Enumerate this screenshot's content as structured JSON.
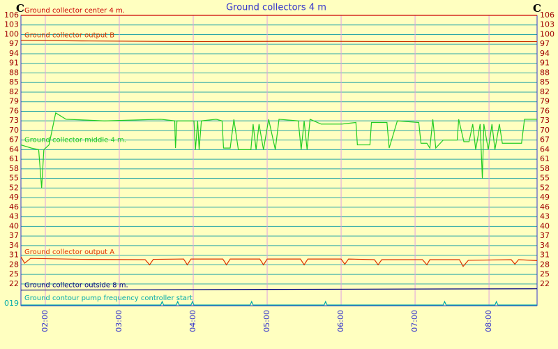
{
  "chart_data": [
    {
      "type": "line",
      "title": "Ground collectors 4 m",
      "ylabel": "C",
      "y2label": "C",
      "ylim": [
        20,
        106
      ],
      "yticks": [
        106,
        103,
        100,
        97,
        94,
        91,
        88,
        85,
        82,
        79,
        76,
        73,
        70,
        67,
        64,
        61,
        58,
        55,
        52,
        49,
        46,
        43,
        40,
        37,
        34,
        31,
        28,
        25,
        22
      ],
      "xlim": [
        1.67,
        8.65
      ],
      "xticks": [
        {
          "value": 2,
          "label": "02:00"
        },
        {
          "value": 3,
          "label": "03:00"
        },
        {
          "value": 4,
          "label": "04:00"
        },
        {
          "value": 5,
          "label": "05:00"
        },
        {
          "value": 6,
          "label": "06:00"
        },
        {
          "value": 7,
          "label": "07:00"
        },
        {
          "value": 8,
          "label": "08:00"
        }
      ],
      "grid": true,
      "series": [
        {
          "name": "Ground collector center 4 m.",
          "color": "#cc0000",
          "x": [
            1.67,
            8.65
          ],
          "values": [
            106,
            106
          ]
        },
        {
          "name": "Ground collector output B",
          "color": "#cc3300",
          "x": [
            1.67,
            2.5,
            4,
            5.5,
            7,
            8.65
          ],
          "values": [
            98.2,
            98,
            97.8,
            97.9,
            97.8,
            97.8
          ]
        },
        {
          "name": "Ground collector middle 4 m.",
          "color": "#22cc22",
          "x": [
            1.67,
            1.81,
            1.91,
            1.95,
            1.98,
            2.05,
            2.14,
            2.28,
            2.8,
            3.56,
            3.75,
            3.76,
            3.78,
            4.01,
            4.03,
            4.06,
            4.08,
            4.11,
            4.31,
            4.39,
            4.41,
            4.5,
            4.55,
            4.61,
            4.78,
            4.81,
            4.85,
            4.89,
            4.95,
            5.02,
            5.11,
            5.16,
            5.42,
            5.46,
            5.5,
            5.54,
            5.58,
            5.73,
            6.01,
            6.2,
            6.22,
            6.39,
            6.41,
            6.62,
            6.65,
            6.76,
            7.05,
            7.08,
            7.16,
            7.2,
            7.24,
            7.28,
            7.38,
            7.57,
            7.59,
            7.66,
            7.73,
            7.78,
            7.82,
            7.88,
            7.91,
            7.93,
            7.99,
            8.04,
            8.08,
            8.14,
            8.18,
            8.44,
            8.48,
            8.65
          ],
          "values": [
            65.5,
            64.5,
            64,
            52,
            64,
            65.5,
            75.5,
            73.5,
            73,
            73.5,
            73,
            64.5,
            73,
            73,
            64,
            73,
            64,
            73,
            73.5,
            73,
            64.5,
            64.5,
            73.5,
            64,
            64,
            72,
            64,
            72,
            64,
            73.5,
            64,
            73.5,
            73,
            64,
            73,
            64,
            73.5,
            72,
            72,
            72.5,
            65.5,
            65.5,
            72.5,
            72.5,
            64.5,
            73,
            72.5,
            66,
            66,
            64.5,
            73.5,
            64.5,
            67,
            67,
            73.5,
            66.5,
            66.5,
            72,
            64,
            72,
            55,
            72,
            64,
            72,
            64,
            72,
            66,
            66,
            73.5,
            73.5
          ]
        },
        {
          "name": "Ground collector output A",
          "color": "#dd3300",
          "x": [
            1.67,
            1.72,
            1.8,
            2.5,
            3.35,
            3.41,
            3.46,
            3.87,
            3.92,
            3.97,
            4.4,
            4.45,
            4.5,
            4.9,
            4.95,
            5.0,
            5.45,
            5.5,
            5.55,
            6.0,
            6.05,
            6.1,
            6.45,
            6.5,
            6.55,
            7.1,
            7.16,
            7.2,
            7.6,
            7.65,
            7.72,
            8.3,
            8.35,
            8.4,
            8.65
          ],
          "values": [
            30.5,
            28.5,
            30,
            29.7,
            29.6,
            28,
            29.7,
            29.8,
            28,
            29.8,
            29.8,
            28,
            29.8,
            29.8,
            28,
            29.8,
            29.8,
            28,
            29.8,
            29.8,
            28.2,
            29.8,
            29.6,
            28,
            29.6,
            29.6,
            28,
            29.6,
            29.6,
            27.5,
            29.4,
            29.6,
            28.2,
            29.6,
            29.3
          ]
        },
        {
          "name": "Ground collector outside 8 m.",
          "color": "#000080",
          "x": [
            1.67,
            5,
            8.65
          ],
          "values": [
            20.1,
            20.3,
            20.5
          ]
        }
      ]
    },
    {
      "type": "line",
      "label": "019",
      "ylim": [
        0,
        1
      ],
      "series": [
        {
          "name": "Ground contour pump frequency controller start",
          "color": "#00aaaa",
          "x": [
            1.67,
            3.56,
            3.58,
            3.6,
            3.77,
            3.79,
            3.81,
            3.97,
            3.99,
            4.01,
            4.77,
            4.79,
            4.81,
            5.77,
            5.79,
            5.81,
            7.38,
            7.4,
            7.42,
            8.08,
            8.1,
            8.12,
            8.65
          ],
          "values": [
            0,
            0,
            1,
            0,
            0,
            1,
            0,
            0,
            1,
            0,
            0,
            1,
            0,
            0,
            1,
            0,
            0,
            1,
            0,
            0,
            1,
            0,
            0
          ]
        }
      ]
    }
  ]
}
